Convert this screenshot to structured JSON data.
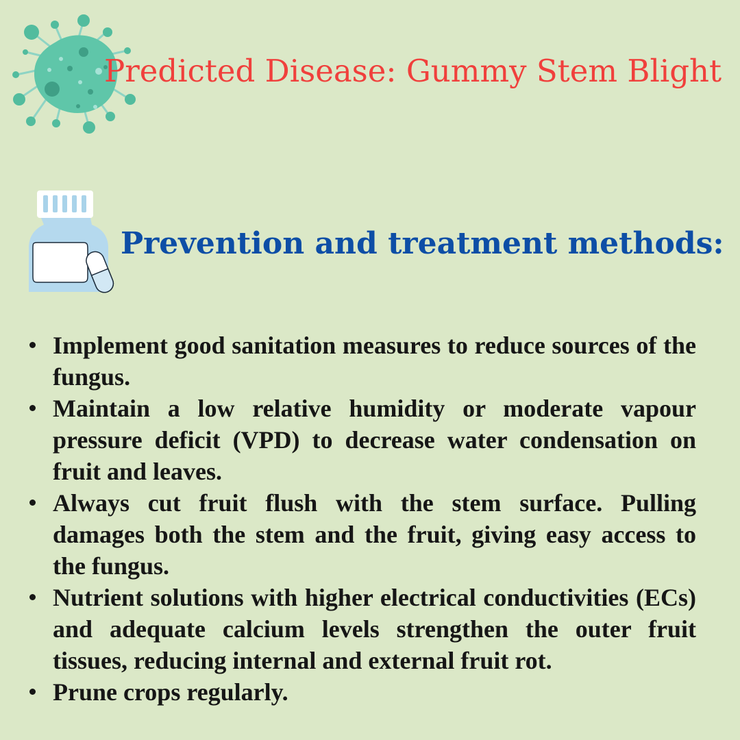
{
  "header": {
    "title": "Predicted Disease: Gummy Stem Blight",
    "icon": "virus-icon"
  },
  "section": {
    "heading": "Prevention and treatment methods:",
    "icon": "medicine-bottle-icon"
  },
  "methods": [
    "Implement good sanitation measures to reduce sources of the fungus.",
    "Maintain a low relative humidity or moderate vapour pressure deficit (VPD) to decrease water condensation on fruit and leaves.",
    "Always cut fruit flush with the stem surface. Pulling damages both the stem and the fruit, giving easy access to the fungus.",
    "Nutrient solutions with higher electrical conductivities (ECs) and adequate calcium levels strengthen the outer fruit tissues, reducing internal and external fruit rot.",
    "Prune crops regularly."
  ],
  "colors": {
    "background": "#dbe8c7",
    "title": "#f0403c",
    "heading": "#0d4ea6",
    "body_text": "#161616",
    "virus": "#5ec5a8",
    "bottle": "#b5d9ee"
  }
}
